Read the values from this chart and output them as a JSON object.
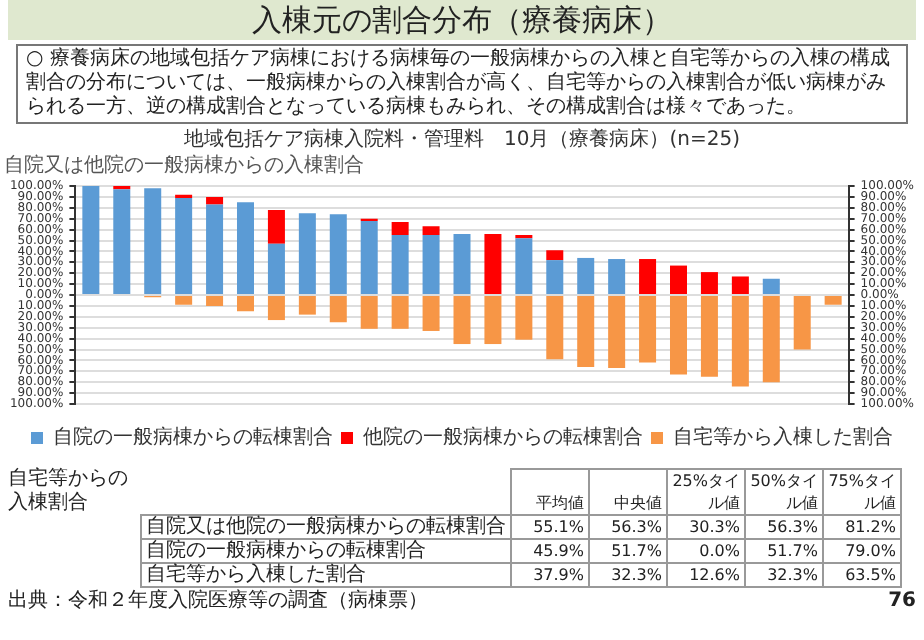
{
  "chart_data": {
    "type": "bar",
    "title": "入棟元の割合分布（療養病床）",
    "subtitle": "地域包括ケア病棟入院料・管理料　10月（療養病床）(n=25)",
    "ylabel": "自院又は他院の一般病棟からの入棟割合",
    "annotations": [
      "○ 療養病床の地域包括ケア病棟における病棟毎の一般病棟からの入棟と自宅等からの入棟の構成割合の分布については、一般病棟からの入棟割合が高く、自宅等からの入棟割合が低い病棟がみられる一方、逆の構成割合となっている病棟もみられ、その構成割合は様々であった。",
      "自宅等からの入棟割合",
      "\t平均値\t中央値\t25%タイル値\t50%タイル値\t75%タイル値",
      "自院又は他院の一般病棟からの転棟割合\t55.1%\t56.3%\t30.3%\t56.3%\t81.2%",
      "自院の一般病棟からの転棟割合\t45.9%\t51.7%\t0.0%\t51.7%\t79.0%",
      "自宅等から入棟した割合\t37.9%\t32.3%\t12.6%\t32.3%\t63.5%",
      "出典：令和２年度入院医療等の調査（病棟票）",
      "76"
    ],
    "categories": [
      null,
      null,
      null,
      null,
      null,
      null,
      null,
      null,
      null,
      null,
      null,
      null,
      null,
      null,
      null,
      null,
      null,
      null,
      null,
      null,
      null,
      null,
      null,
      null,
      null
    ],
    "stacked": true,
    "series": [
      {
        "name": "自院の一般病棟からの転棟割合",
        "color": "#5b9bd5",
        "values": [
          100,
          97,
          98,
          89,
          83,
          85,
          47,
          75,
          74,
          68,
          55,
          55,
          56,
          0,
          52,
          32,
          34,
          33,
          0,
          0,
          0,
          0,
          15,
          0,
          0
        ]
      },
      {
        "name": "他院の一般病棟からの転棟割合",
        "color": "#ff0000",
        "values": [
          0,
          3,
          0,
          3,
          7,
          0,
          31,
          0,
          0,
          2,
          12,
          8,
          0,
          56,
          3,
          9,
          0,
          0,
          33,
          27,
          21,
          17,
          0,
          0,
          0
        ]
      },
      {
        "name": "自宅等から入棟した割合",
        "color": "#f79646",
        "values": [
          0,
          0,
          -2,
          -9,
          -10,
          -15,
          -23,
          -18,
          -25,
          -31,
          -31,
          -33,
          -45,
          -45,
          -41,
          -59,
          -66,
          -67,
          -62,
          -73,
          -75,
          -84,
          -80,
          -50,
          -9
        ]
      }
    ],
    "ylim": [
      -100,
      100
    ],
    "yticks": [
      {
        "value": -100,
        "label": "100.00%"
      },
      {
        "value": -90,
        "label": "90.00%"
      },
      {
        "value": -80,
        "label": "80.00%"
      },
      {
        "value": -70,
        "label": "70.00%"
      },
      {
        "value": -60,
        "label": "60.00%"
      },
      {
        "value": -50,
        "label": "50.00%"
      },
      {
        "value": -40,
        "label": "40.00%"
      },
      {
        "value": -30,
        "label": "30.00%"
      },
      {
        "value": -20,
        "label": "20.00%"
      },
      {
        "value": -10,
        "label": "10.00%"
      },
      {
        "value": 0,
        "label": "0.00%"
      },
      {
        "value": 10,
        "label": "10.00%"
      },
      {
        "value": 20,
        "label": "20.00%"
      },
      {
        "value": 30,
        "label": "30.00%"
      },
      {
        "value": 40,
        "label": "40.00%"
      },
      {
        "value": 50,
        "label": "50.00%"
      },
      {
        "value": 60,
        "label": "60.00%"
      },
      {
        "value": 70,
        "label": "70.00%"
      },
      {
        "value": 80,
        "label": "80.00%"
      },
      {
        "value": 90,
        "label": "90.00%"
      },
      {
        "value": 100,
        "label": "100.00%"
      }
    ],
    "y2lim": [
      -100,
      100
    ],
    "y2ticks": [
      {
        "value": -100,
        "label": "100.00%"
      },
      {
        "value": -90,
        "label": "90.00%"
      },
      {
        "value": -80,
        "label": "80.00%"
      },
      {
        "value": -70,
        "label": "70.00%"
      },
      {
        "value": -60,
        "label": "60.00%"
      },
      {
        "value": -50,
        "label": "50.00%"
      },
      {
        "value": -40,
        "label": "40.00%"
      },
      {
        "value": -30,
        "label": "30.00%"
      },
      {
        "value": -20,
        "label": "20.00%"
      },
      {
        "value": -10,
        "label": "10.00%"
      },
      {
        "value": 0,
        "label": "0.00%"
      },
      {
        "value": 10,
        "label": "10.00%"
      },
      {
        "value": 20,
        "label": "20.00%"
      },
      {
        "value": 30,
        "label": "30.00%"
      },
      {
        "value": 40,
        "label": "40.00%"
      },
      {
        "value": 50,
        "label": "50.00%"
      },
      {
        "value": 60,
        "label": "60.00%"
      },
      {
        "value": 70,
        "label": "70.00%"
      },
      {
        "value": 80,
        "label": "80.00%"
      },
      {
        "value": 90,
        "label": "90.00%"
      },
      {
        "value": 100,
        "label": "100.00%"
      }
    ],
    "grid": "y",
    "legend": "bottom",
    "tick_labels": "y"
  }
}
